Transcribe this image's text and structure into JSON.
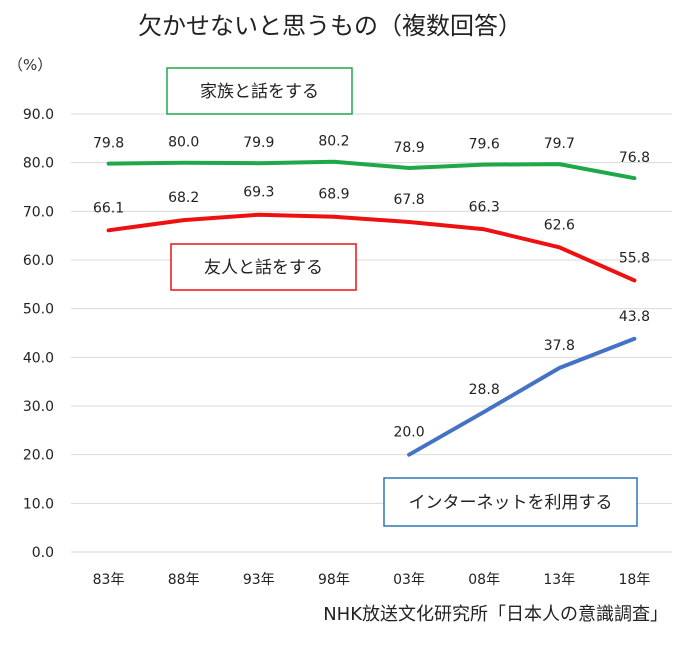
{
  "chart_data": {
    "type": "line",
    "title": "欠かせないと思うもの（複数回答）",
    "ylabel": "（%）",
    "ylim": [
      0,
      90
    ],
    "yticks": [
      "0.0",
      "10.0",
      "20.0",
      "30.0",
      "40.0",
      "50.0",
      "60.0",
      "70.0",
      "80.0",
      "90.0"
    ],
    "categories": [
      "83年",
      "88年",
      "93年",
      "98年",
      "03年",
      "08年",
      "13年",
      "18年"
    ],
    "grid": true,
    "series": [
      {
        "name": "家族と話をする",
        "color": "#1fa84a",
        "values": [
          79.8,
          80.0,
          79.9,
          80.2,
          78.9,
          79.6,
          79.7,
          76.8
        ],
        "labels": [
          "79.8",
          "80.0",
          "79.9",
          "80.2",
          "78.9",
          "79.6",
          "79.7",
          "76.8"
        ]
      },
      {
        "name": "友人と話をする",
        "color": "#ee1111",
        "values": [
          66.1,
          68.2,
          69.3,
          68.9,
          67.8,
          66.3,
          62.6,
          55.8
        ],
        "labels": [
          "66.1",
          "68.2",
          "69.3",
          "68.9",
          "67.8",
          "66.3",
          "62.6",
          "55.8"
        ]
      },
      {
        "name": "インターネットを利用する",
        "color": "#4472c4",
        "values": [
          null,
          null,
          null,
          null,
          20.0,
          28.8,
          37.8,
          43.8
        ],
        "labels": [
          null,
          null,
          null,
          null,
          "20.0",
          "28.8",
          "37.8",
          "43.8"
        ]
      }
    ],
    "source": "NHK放送文化研究所「日本人の意識調査」"
  }
}
